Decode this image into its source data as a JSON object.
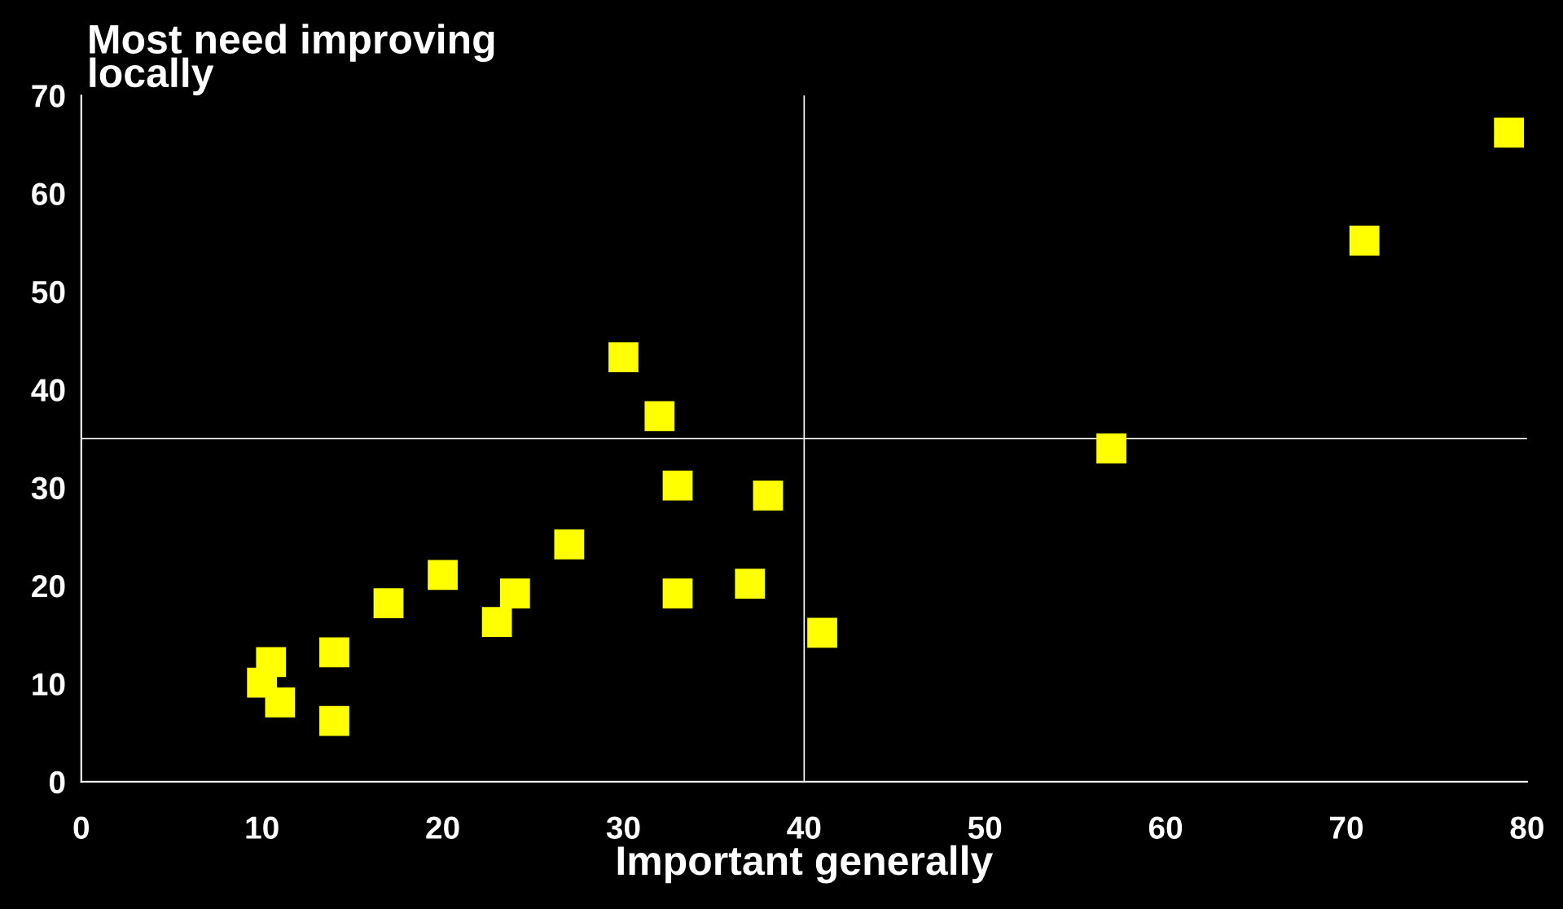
{
  "chart_data": {
    "type": "scatter",
    "xlabel": "Important generally",
    "ylabel": "Most need improving\nlocally",
    "x": [
      79,
      71,
      57,
      30,
      32,
      33,
      38,
      27,
      20,
      17,
      24,
      23,
      33,
      37,
      41,
      14,
      10.5,
      10,
      11,
      14
    ],
    "series": [
      {
        "color": "#ffff00",
        "values": [
          66.2,
          55.2,
          34,
          43.3,
          37.3,
          30.2,
          29.2,
          24.2,
          21.1,
          18.2,
          19.2,
          16.3,
          19.2,
          20.2,
          15.2,
          13.2,
          12.2,
          10.1,
          8.1,
          6.2
        ]
      }
    ],
    "marker": "square",
    "xlim": [
      0,
      80
    ],
    "ylim": [
      0,
      70
    ],
    "xticks": [
      0,
      10,
      20,
      30,
      40,
      50,
      60,
      70,
      80
    ],
    "yticks": [
      0,
      10,
      20,
      30,
      40,
      50,
      60,
      70
    ],
    "grid": false,
    "legend": false,
    "ref_lines": [
      {
        "axis": "x",
        "value": 40,
        "color": "#ffffff"
      },
      {
        "axis": "y",
        "value": 35,
        "color": "#ffffff"
      }
    ]
  }
}
